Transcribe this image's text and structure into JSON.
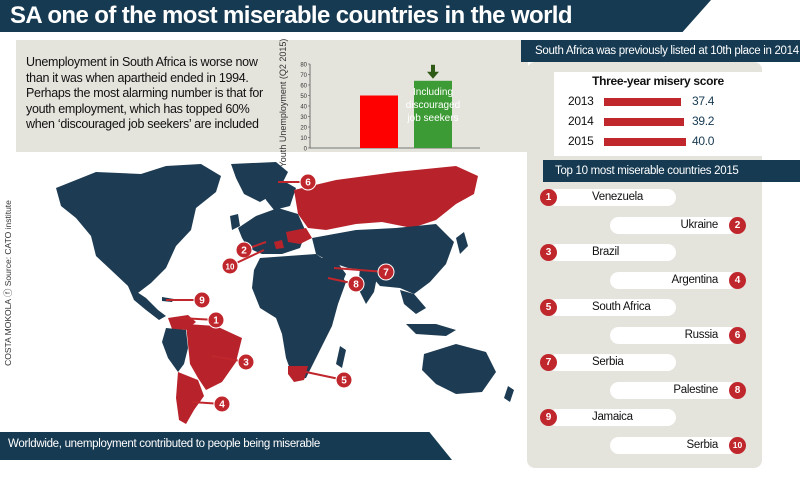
{
  "title": "SA one of the most miserable countries in the world",
  "intro": "Unemployment in South Africa is worse now than it was when apartheid ended in 1994. Perhaps the most alarming number is that for youth employment, which has topped 60% when ‘discouraged job seekers’ are included",
  "previous_listing": "South Africa was previously listed at 10th place in 2014",
  "youth_chart": {
    "ylabel": "Youth Unemployment (Q2 2015)",
    "annotation": "Including discouraged job seekers",
    "colors": {
      "base": "#ff0000",
      "discouraged": "#3d9b35",
      "arrow": "#2e5a16"
    },
    "chart_data": {
      "type": "bar",
      "categories": [
        "",
        ""
      ],
      "values": [
        50,
        64
      ],
      "ylim": [
        0,
        80
      ],
      "yticks": [
        "80",
        "70",
        "60",
        "50",
        "40",
        "30",
        "20",
        "10",
        "0"
      ]
    }
  },
  "misery": {
    "title": "Three-year misery score",
    "bar_color": "#c0272d",
    "value_color": "#163a52",
    "chart_data": {
      "type": "bar",
      "categories": [
        "2013",
        "2014",
        "2015"
      ],
      "values": [
        37.4,
        39.2,
        40.0
      ],
      "value_labels": [
        "37.4",
        "39.2",
        "40.0"
      ]
    }
  },
  "top10_title": "Top 10 most miserable countries 2015",
  "top10": [
    {
      "rank": "1",
      "country": "Venezuela"
    },
    {
      "rank": "2",
      "country": "Ukraine"
    },
    {
      "rank": "3",
      "country": "Brazil"
    },
    {
      "rank": "4",
      "country": "Argentina"
    },
    {
      "rank": "5",
      "country": "South Africa"
    },
    {
      "rank": "6",
      "country": "Russia"
    },
    {
      "rank": "7",
      "country": "Serbia"
    },
    {
      "rank": "8",
      "country": "Palestine"
    },
    {
      "rank": "9",
      "country": "Jamaica"
    },
    {
      "rank": "10",
      "country": "Serbia"
    }
  ],
  "map_colors": {
    "land": "#1d3b52",
    "highlight": "#b8232b",
    "marker": "#c0272d"
  },
  "footer": "Worldwide, unemployment contributed to people being miserable",
  "credit": "COSTA MOKOLA ⓕ Source: CATO institute"
}
